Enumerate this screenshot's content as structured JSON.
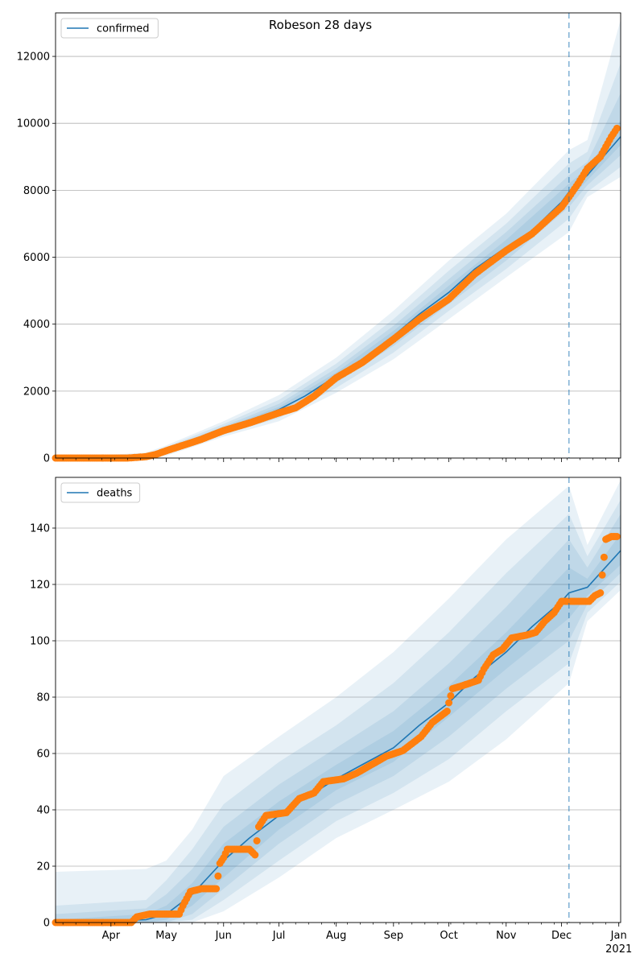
{
  "title": "Robeson 28 days",
  "month_ticks": [
    {
      "date": "2020-04-01",
      "label": "Apr"
    },
    {
      "date": "2020-05-01",
      "label": "May"
    },
    {
      "date": "2020-06-01",
      "label": "Jun"
    },
    {
      "date": "2020-07-01",
      "label": "Jul"
    },
    {
      "date": "2020-08-01",
      "label": "Aug"
    },
    {
      "date": "2020-09-01",
      "label": "Sep"
    },
    {
      "date": "2020-10-01",
      "label": "Oct"
    },
    {
      "date": "2020-11-01",
      "label": "Nov"
    },
    {
      "date": "2020-12-01",
      "label": "Dec"
    },
    {
      "date": "2021-01-01",
      "label": "Jan"
    }
  ],
  "year_label": "2021",
  "colors": {
    "model": "#1f77b4",
    "observed": "#ff7f0e",
    "band": "#1f77b4",
    "vline": "#1f77b4",
    "grid": "#b0b0b0"
  },
  "chart_data": [
    {
      "type": "line",
      "legend": "confirmed",
      "legend_position": "top-left",
      "xlim": [
        "2020-03-02",
        "2021-01-02"
      ],
      "ylim": [
        0,
        13300
      ],
      "yticks": [
        0,
        2000,
        4000,
        6000,
        8000,
        10000,
        12000
      ],
      "grid": "y",
      "forecast_start": "2020-12-05",
      "model": [
        [
          "2020-03-02",
          0
        ],
        [
          "2020-04-05",
          0
        ],
        [
          "2020-04-20",
          30
        ],
        [
          "2020-05-01",
          200
        ],
        [
          "2020-05-15",
          500
        ],
        [
          "2020-06-01",
          850
        ],
        [
          "2020-06-15",
          1100
        ],
        [
          "2020-07-01",
          1450
        ],
        [
          "2020-07-15",
          1850
        ],
        [
          "2020-08-01",
          2450
        ],
        [
          "2020-08-15",
          2950
        ],
        [
          "2020-09-01",
          3650
        ],
        [
          "2020-09-15",
          4300
        ],
        [
          "2020-10-01",
          4950
        ],
        [
          "2020-10-15",
          5650
        ],
        [
          "2020-11-01",
          6300
        ],
        [
          "2020-11-15",
          6800
        ],
        [
          "2020-12-01",
          7650
        ],
        [
          "2020-12-05",
          7950
        ],
        [
          "2020-12-15",
          8450
        ],
        [
          "2021-01-02",
          9600
        ]
      ],
      "bands": [
        [
          [
            "2020-03-02",
            0,
            0
          ],
          [
            "2020-04-20",
            0,
            60
          ],
          [
            "2020-05-01",
            180,
            240
          ],
          [
            "2020-06-01",
            800,
            900
          ],
          [
            "2020-07-01",
            1380,
            1530
          ],
          [
            "2020-08-01",
            2350,
            2560
          ],
          [
            "2020-09-01",
            3500,
            3800
          ],
          [
            "2020-10-01",
            4780,
            5150
          ],
          [
            "2020-11-01",
            6100,
            6520
          ],
          [
            "2020-12-05",
            7720,
            8200
          ],
          [
            "2020-12-15",
            8300,
            8650
          ],
          [
            "2021-01-02",
            9350,
            10100
          ]
        ],
        [
          [
            "2020-03-02",
            0,
            0
          ],
          [
            "2020-04-20",
            0,
            90
          ],
          [
            "2020-05-01",
            150,
            280
          ],
          [
            "2020-06-01",
            760,
            950
          ],
          [
            "2020-07-01",
            1300,
            1620
          ],
          [
            "2020-08-01",
            2250,
            2680
          ],
          [
            "2020-09-01",
            3350,
            3950
          ],
          [
            "2020-10-01",
            4600,
            5350
          ],
          [
            "2020-11-01",
            5900,
            6750
          ],
          [
            "2020-12-05",
            7500,
            8450
          ],
          [
            "2020-12-15",
            8150,
            8850
          ],
          [
            "2021-01-02",
            9050,
            10900
          ]
        ],
        [
          [
            "2020-03-02",
            0,
            0
          ],
          [
            "2020-04-20",
            0,
            120
          ],
          [
            "2020-05-01",
            110,
            330
          ],
          [
            "2020-06-01",
            700,
            1020
          ],
          [
            "2020-07-01",
            1200,
            1740
          ],
          [
            "2020-08-01",
            2100,
            2820
          ],
          [
            "2020-09-01",
            3150,
            4150
          ],
          [
            "2020-10-01",
            4400,
            5600
          ],
          [
            "2020-11-01",
            5650,
            7000
          ],
          [
            "2020-12-05",
            7150,
            8800
          ],
          [
            "2020-12-15",
            7950,
            9150
          ],
          [
            "2021-01-02",
            8700,
            11800
          ]
        ],
        [
          [
            "2020-03-02",
            0,
            0
          ],
          [
            "2020-04-20",
            0,
            160
          ],
          [
            "2020-05-01",
            70,
            380
          ],
          [
            "2020-06-01",
            640,
            1100
          ],
          [
            "2020-07-01",
            1100,
            1880
          ],
          [
            "2020-08-01",
            1950,
            3000
          ],
          [
            "2020-09-01",
            2950,
            4400
          ],
          [
            "2020-10-01",
            4150,
            5900
          ],
          [
            "2020-11-01",
            5400,
            7300
          ],
          [
            "2020-12-05",
            6750,
            9200
          ],
          [
            "2020-12-15",
            7800,
            9500
          ],
          [
            "2021-01-02",
            8400,
            13100
          ]
        ]
      ],
      "observed": [
        [
          "2020-03-02",
          0
        ],
        [
          "2020-04-10",
          0
        ],
        [
          "2020-04-20",
          40
        ],
        [
          "2020-04-25",
          100
        ],
        [
          "2020-05-01",
          220
        ],
        [
          "2020-05-10",
          380
        ],
        [
          "2020-05-20",
          560
        ],
        [
          "2020-06-01",
          820
        ],
        [
          "2020-06-15",
          1050
        ],
        [
          "2020-07-01",
          1350
        ],
        [
          "2020-07-10",
          1500
        ],
        [
          "2020-07-20",
          1850
        ],
        [
          "2020-08-01",
          2400
        ],
        [
          "2020-08-15",
          2850
        ],
        [
          "2020-09-01",
          3550
        ],
        [
          "2020-09-15",
          4150
        ],
        [
          "2020-10-01",
          4750
        ],
        [
          "2020-10-15",
          5500
        ],
        [
          "2020-11-01",
          6200
        ],
        [
          "2020-11-15",
          6700
        ],
        [
          "2020-12-01",
          7500
        ],
        [
          "2020-12-05",
          7800
        ],
        [
          "2020-12-10",
          8200
        ],
        [
          "2020-12-15",
          8650
        ],
        [
          "2020-12-22",
          9000
        ],
        [
          "2020-12-25",
          9300
        ],
        [
          "2020-12-28",
          9600
        ],
        [
          "2020-12-31",
          9850
        ]
      ]
    },
    {
      "type": "line",
      "legend": "deaths",
      "legend_position": "top-left",
      "xlim": [
        "2020-03-02",
        "2021-01-02"
      ],
      "ylim": [
        0,
        158
      ],
      "yticks": [
        0,
        20,
        40,
        60,
        80,
        100,
        120,
        140
      ],
      "grid": "y",
      "forecast_start": "2020-12-05",
      "model": [
        [
          "2020-03-02",
          0
        ],
        [
          "2020-04-20",
          1
        ],
        [
          "2020-05-01",
          3
        ],
        [
          "2020-05-15",
          10
        ],
        [
          "2020-06-01",
          22
        ],
        [
          "2020-06-15",
          30
        ],
        [
          "2020-07-01",
          38
        ],
        [
          "2020-07-15",
          44
        ],
        [
          "2020-08-01",
          51
        ],
        [
          "2020-08-15",
          56
        ],
        [
          "2020-09-01",
          62
        ],
        [
          "2020-09-15",
          70
        ],
        [
          "2020-10-01",
          78
        ],
        [
          "2020-10-15",
          87
        ],
        [
          "2020-11-01",
          96
        ],
        [
          "2020-11-15",
          105
        ],
        [
          "2020-12-01",
          114
        ],
        [
          "2020-12-05",
          117
        ],
        [
          "2020-12-15",
          119
        ],
        [
          "2021-01-02",
          132
        ]
      ],
      "bands": [
        [
          [
            "2020-03-02",
            0,
            1
          ],
          [
            "2020-04-20",
            0,
            3
          ],
          [
            "2020-05-01",
            1,
            6
          ],
          [
            "2020-05-15",
            6,
            14
          ],
          [
            "2020-06-01",
            16,
            28
          ],
          [
            "2020-07-01",
            33,
            43
          ],
          [
            "2020-08-01",
            47,
            56
          ],
          [
            "2020-09-01",
            57,
            68
          ],
          [
            "2020-10-01",
            73,
            84
          ],
          [
            "2020-11-01",
            90,
            103
          ],
          [
            "2020-12-05",
            108,
            126
          ],
          [
            "2020-12-15",
            116,
            122
          ],
          [
            "2021-01-02",
            127,
            138
          ]
        ],
        [
          [
            "2020-03-02",
            0,
            3
          ],
          [
            "2020-04-20",
            0,
            5
          ],
          [
            "2020-05-01",
            0,
            10
          ],
          [
            "2020-05-15",
            3,
            19
          ],
          [
            "2020-06-01",
            12,
            34
          ],
          [
            "2020-07-01",
            28,
            49
          ],
          [
            "2020-08-01",
            42,
            62
          ],
          [
            "2020-09-01",
            52,
            75
          ],
          [
            "2020-10-01",
            66,
            92
          ],
          [
            "2020-11-01",
            83,
            112
          ],
          [
            "2020-12-05",
            100,
            136
          ],
          [
            "2020-12-15",
            113,
            126
          ],
          [
            "2021-01-02",
            124,
            145
          ]
        ],
        [
          [
            "2020-03-02",
            0,
            6
          ],
          [
            "2020-04-20",
            0,
            8
          ],
          [
            "2020-05-01",
            0,
            15
          ],
          [
            "2020-05-15",
            1,
            26
          ],
          [
            "2020-06-01",
            8,
            42
          ],
          [
            "2020-07-01",
            22,
            57
          ],
          [
            "2020-08-01",
            36,
            70
          ],
          [
            "2020-09-01",
            46,
            85
          ],
          [
            "2020-10-01",
            58,
            103
          ],
          [
            "2020-11-01",
            75,
            124
          ],
          [
            "2020-12-05",
            92,
            145
          ],
          [
            "2020-12-15",
            110,
            130
          ],
          [
            "2021-01-02",
            121,
            150
          ]
        ],
        [
          [
            "2020-03-02",
            0,
            18
          ],
          [
            "2020-04-20",
            0,
            19
          ],
          [
            "2020-05-01",
            0,
            22
          ],
          [
            "2020-05-15",
            0,
            33
          ],
          [
            "2020-06-01",
            4,
            52
          ],
          [
            "2020-07-01",
            16,
            66
          ],
          [
            "2020-08-01",
            30,
            80
          ],
          [
            "2020-09-01",
            40,
            96
          ],
          [
            "2020-10-01",
            50,
            115
          ],
          [
            "2020-11-01",
            65,
            136
          ],
          [
            "2020-12-05",
            85,
            155
          ],
          [
            "2020-12-15",
            107,
            134
          ],
          [
            "2021-01-02",
            118,
            157
          ]
        ]
      ],
      "observed": [
        [
          "2020-03-02",
          0
        ],
        [
          "2020-04-12",
          0
        ],
        [
          "2020-04-15",
          2
        ],
        [
          "2020-04-22",
          3
        ],
        [
          "2020-05-08",
          3
        ],
        [
          "2020-05-10",
          6
        ],
        [
          "2020-05-14",
          11
        ],
        [
          "2020-05-20",
          12
        ],
        [
          "2020-05-28",
          12
        ],
        [
          "2020-05-30",
          21
        ],
        [
          "2020-06-01",
          23
        ],
        [
          "2020-06-03",
          26
        ],
        [
          "2020-06-15",
          26
        ],
        [
          "2020-06-18",
          24
        ],
        [
          "2020-06-20",
          34
        ],
        [
          "2020-06-24",
          38
        ],
        [
          "2020-07-05",
          39
        ],
        [
          "2020-07-12",
          44
        ],
        [
          "2020-07-20",
          46
        ],
        [
          "2020-07-25",
          50
        ],
        [
          "2020-08-05",
          51
        ],
        [
          "2020-08-12",
          53
        ],
        [
          "2020-08-20",
          56
        ],
        [
          "2020-08-28",
          59
        ],
        [
          "2020-09-06",
          61
        ],
        [
          "2020-09-10",
          63
        ],
        [
          "2020-09-16",
          66
        ],
        [
          "2020-09-22",
          71
        ],
        [
          "2020-09-30",
          75
        ],
        [
          "2020-10-01",
          78
        ],
        [
          "2020-10-03",
          83
        ],
        [
          "2020-10-08",
          84
        ],
        [
          "2020-10-17",
          86
        ],
        [
          "2020-10-20",
          90
        ],
        [
          "2020-10-25",
          95
        ],
        [
          "2020-10-30",
          97
        ],
        [
          "2020-11-04",
          101
        ],
        [
          "2020-11-12",
          102
        ],
        [
          "2020-11-17",
          103
        ],
        [
          "2020-11-22",
          107
        ],
        [
          "2020-11-27",
          110
        ],
        [
          "2020-12-01",
          114
        ],
        [
          "2020-12-10",
          114
        ],
        [
          "2020-12-16",
          114
        ],
        [
          "2020-12-19",
          116
        ],
        [
          "2020-12-22",
          117
        ],
        [
          "2020-12-25",
          136
        ],
        [
          "2020-12-28",
          137
        ],
        [
          "2020-12-31",
          137
        ]
      ]
    }
  ]
}
